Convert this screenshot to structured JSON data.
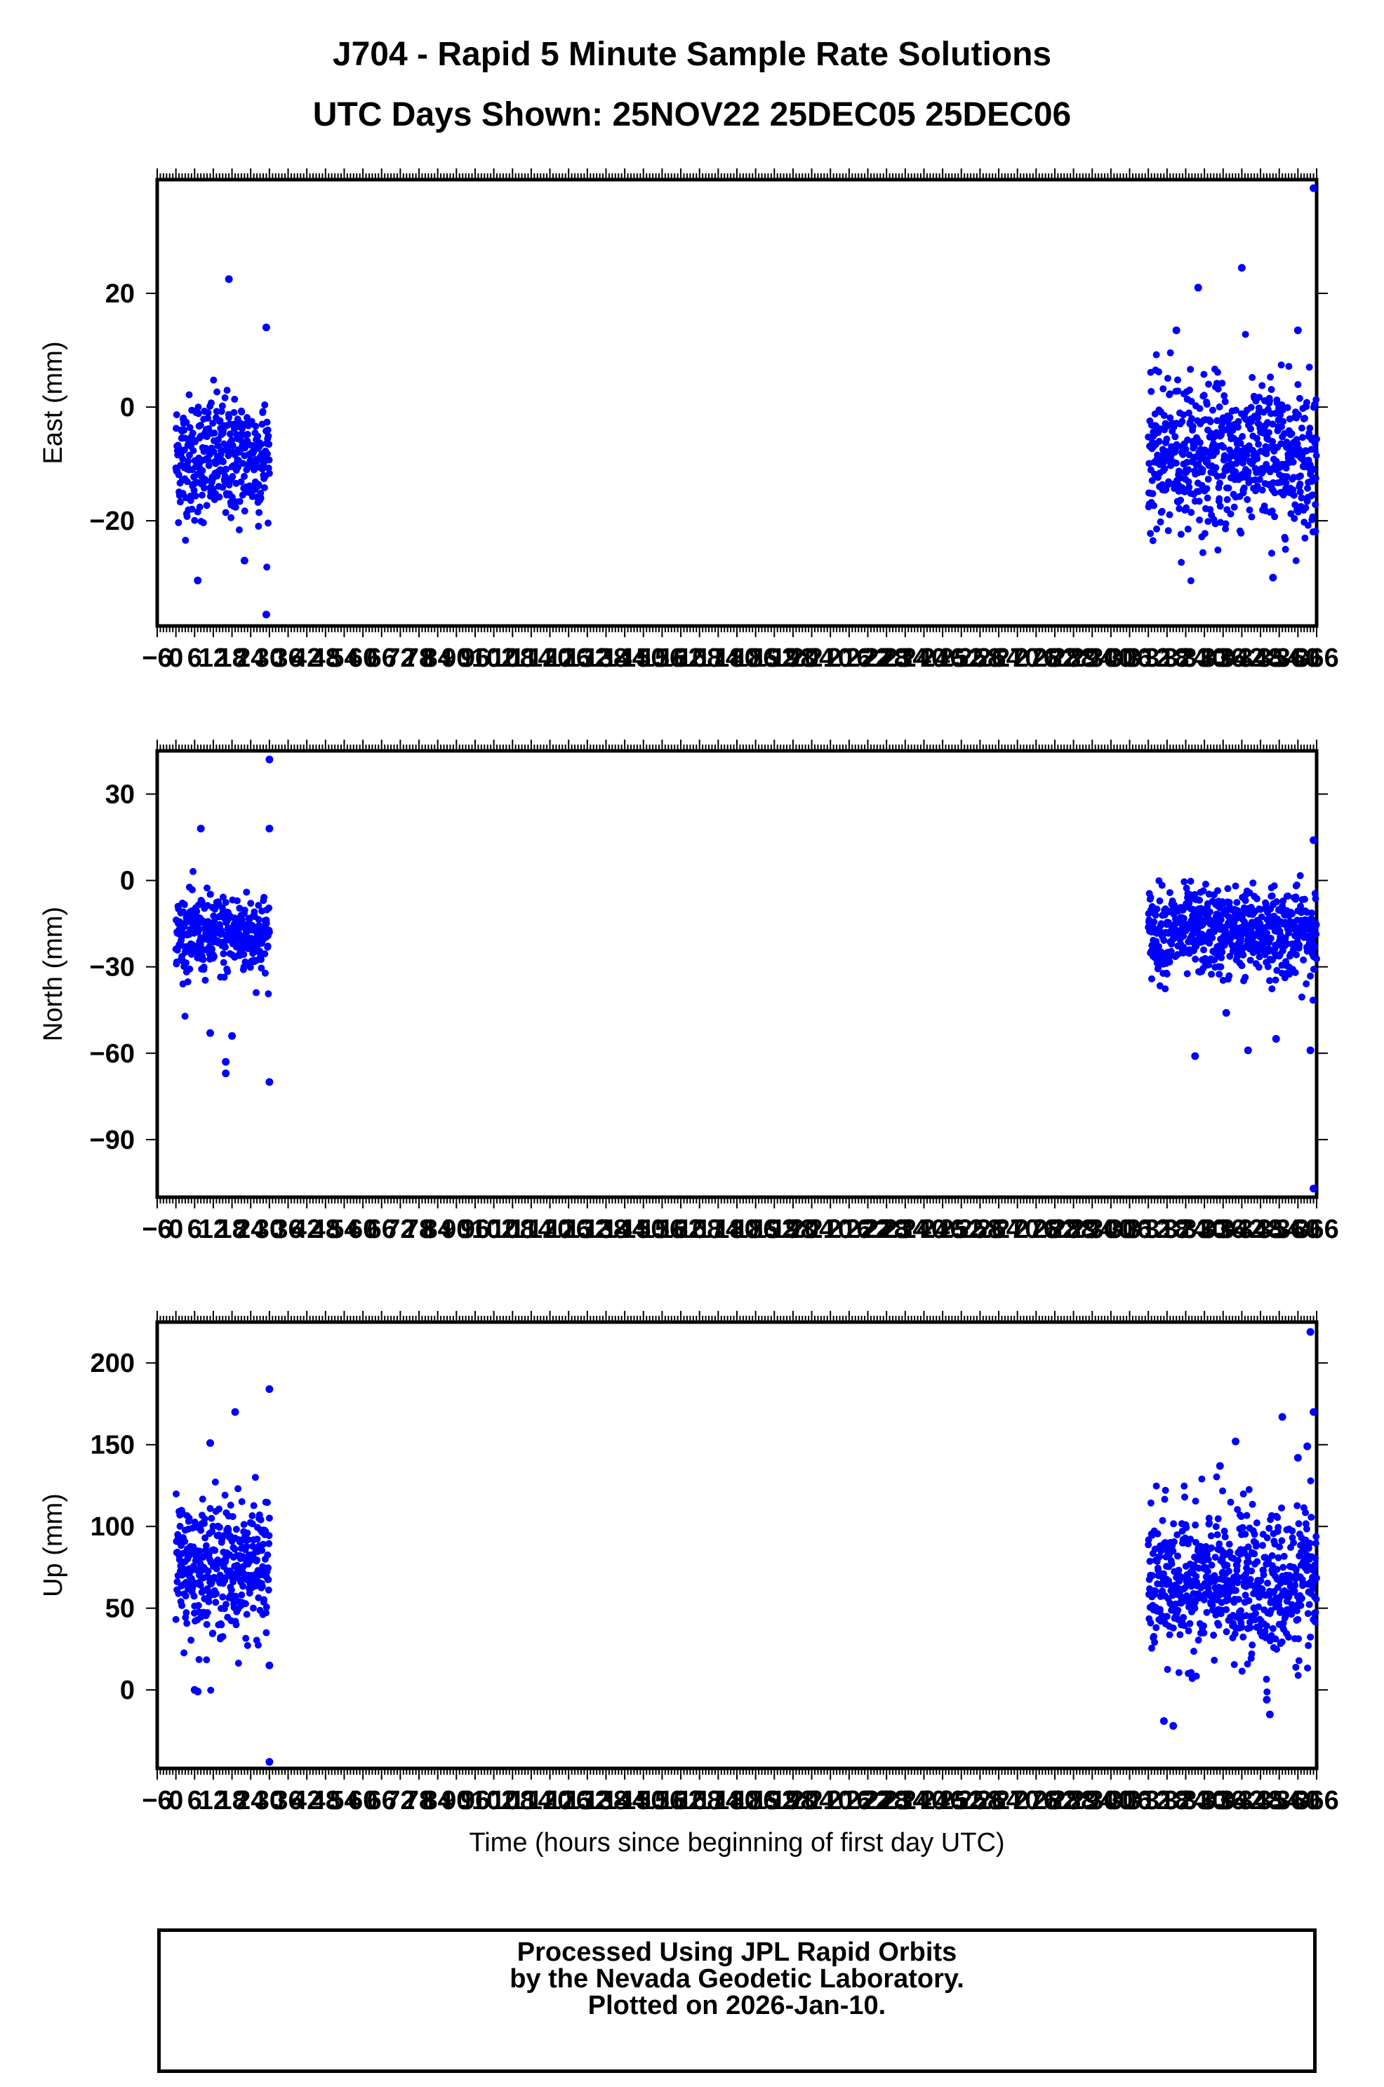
{
  "header": {
    "title": "J704 - Rapid 5 Minute Sample Rate Solutions",
    "subtitle": "UTC Days Shown:  25NOV22 25DEC05 25DEC06"
  },
  "footer": {
    "line1": "Processed Using JPL Rapid Orbits",
    "line2": "by the Nevada Geodetic Laboratory.",
    "line3": "Plotted on 2026-Jan-10."
  },
  "colors": {
    "points": "#0000ff",
    "frame": "#000000"
  },
  "chart_data": [
    {
      "type": "scatter",
      "ylabel": "East (mm)",
      "xlabel": "",
      "xlim": [
        -6,
        366
      ],
      "ylim": [
        -38.5,
        40
      ],
      "yticks": [
        20,
        0,
        -20
      ],
      "ytick_labels": [
        "20",
        "0",
        "−20"
      ],
      "xticks": [
        -6,
        0,
        6,
        12,
        18,
        24,
        30,
        36,
        42,
        48,
        54,
        60,
        66,
        72,
        78,
        84,
        90,
        96,
        102,
        108,
        114,
        120,
        126,
        132,
        138,
        144,
        150,
        156,
        162,
        168,
        174,
        180,
        186,
        192,
        198,
        204,
        210,
        216,
        222,
        228,
        234,
        240,
        246,
        252,
        258,
        264,
        270,
        276,
        282,
        288,
        294,
        300,
        306,
        312,
        318,
        324,
        330,
        336,
        342,
        348,
        354,
        360,
        366
      ],
      "xtick_labels": [
        "−6",
        "0",
        "6",
        "12",
        "18",
        "24",
        "30",
        "36",
        "42",
        "48",
        "54",
        "60",
        "66",
        "72",
        "78",
        "84",
        "90",
        "96",
        "102",
        "108",
        "114",
        "120",
        "126",
        "132",
        "138",
        "144",
        "150",
        "156",
        "162",
        "168",
        "174",
        "180",
        "186",
        "192",
        "198",
        "204",
        "210",
        "216",
        "222",
        "228",
        "234",
        "240",
        "246",
        "252",
        "258",
        "264",
        "270",
        "276",
        "282",
        "288",
        "294",
        "300",
        "306",
        "312",
        "318",
        "324",
        "330",
        "336",
        "342",
        "348",
        "354",
        "360",
        "366"
      ],
      "clusters": [
        {
          "x_range": [
            0,
            30
          ],
          "center": -9,
          "spread": 5.5
        },
        {
          "x_range": [
            312,
            366
          ],
          "center": -8.5,
          "spread": 6.5
        }
      ],
      "outliers": [
        [
          7,
          -30.5
        ],
        [
          17,
          22.5
        ],
        [
          22,
          -27
        ],
        [
          29,
          14
        ],
        [
          29,
          -36.5
        ],
        [
          321,
          13.5
        ],
        [
          328,
          21
        ],
        [
          342,
          24.5
        ],
        [
          352,
          -30
        ],
        [
          365,
          38.5
        ],
        [
          360,
          13.5
        ]
      ]
    },
    {
      "type": "scatter",
      "ylabel": "North (mm)",
      "xlabel": "",
      "xlim": [
        -6,
        366
      ],
      "ylim": [
        -110,
        45
      ],
      "yticks": [
        30,
        0,
        -30,
        -60,
        -90
      ],
      "ytick_labels": [
        "30",
        "0",
        "−30",
        "−60",
        "−90"
      ],
      "xticks": [
        -6,
        0,
        6,
        12,
        18,
        24,
        30,
        36,
        42,
        48,
        54,
        60,
        66,
        72,
        78,
        84,
        90,
        96,
        102,
        108,
        114,
        120,
        126,
        132,
        138,
        144,
        150,
        156,
        162,
        168,
        174,
        180,
        186,
        192,
        198,
        204,
        210,
        216,
        222,
        228,
        234,
        240,
        246,
        252,
        258,
        264,
        270,
        276,
        282,
        288,
        294,
        300,
        306,
        312,
        318,
        324,
        330,
        336,
        342,
        348,
        354,
        360,
        366
      ],
      "xtick_labels": [
        "−6",
        "0",
        "6",
        "12",
        "18",
        "24",
        "30",
        "36",
        "42",
        "48",
        "54",
        "60",
        "66",
        "72",
        "78",
        "84",
        "90",
        "96",
        "102",
        "108",
        "114",
        "120",
        "126",
        "132",
        "138",
        "144",
        "150",
        "156",
        "162",
        "168",
        "174",
        "180",
        "186",
        "192",
        "198",
        "204",
        "210",
        "216",
        "222",
        "228",
        "234",
        "240",
        "246",
        "252",
        "258",
        "264",
        "270",
        "276",
        "282",
        "288",
        "294",
        "300",
        "306",
        "312",
        "318",
        "324",
        "330",
        "336",
        "342",
        "348",
        "354",
        "360",
        "366"
      ],
      "clusters": [
        {
          "x_range": [
            0,
            30
          ],
          "center": -19,
          "spread": 7
        },
        {
          "x_range": [
            312,
            366
          ],
          "center": -18,
          "spread": 7.5
        }
      ],
      "outliers": [
        [
          8,
          18
        ],
        [
          11,
          -53
        ],
        [
          16,
          -67
        ],
        [
          16,
          -63
        ],
        [
          18,
          -54
        ],
        [
          30,
          42
        ],
        [
          30,
          18
        ],
        [
          30,
          -70
        ],
        [
          327,
          -61
        ],
        [
          337,
          -46
        ],
        [
          344,
          -59
        ],
        [
          353,
          -55
        ],
        [
          364,
          -59
        ],
        [
          365,
          -107
        ],
        [
          365,
          14
        ]
      ]
    },
    {
      "type": "scatter",
      "ylabel": "Up (mm)",
      "xlabel": "Time (hours since beginning of first day UTC)",
      "xlim": [
        -6,
        366
      ],
      "ylim": [
        -48,
        225
      ],
      "yticks": [
        200,
        150,
        100,
        50,
        0
      ],
      "ytick_labels": [
        "200",
        "150",
        "100",
        "50",
        "0"
      ],
      "xticks": [
        -6,
        0,
        6,
        12,
        18,
        24,
        30,
        36,
        42,
        48,
        54,
        60,
        66,
        72,
        78,
        84,
        90,
        96,
        102,
        108,
        114,
        120,
        126,
        132,
        138,
        144,
        150,
        156,
        162,
        168,
        174,
        180,
        186,
        192,
        198,
        204,
        210,
        216,
        222,
        228,
        234,
        240,
        246,
        252,
        258,
        264,
        270,
        276,
        282,
        288,
        294,
        300,
        306,
        312,
        318,
        324,
        330,
        336,
        342,
        348,
        354,
        360,
        366
      ],
      "xtick_labels": [
        "−6",
        "0",
        "6",
        "12",
        "18",
        "24",
        "30",
        "36",
        "42",
        "48",
        "54",
        "60",
        "66",
        "72",
        "78",
        "84",
        "90",
        "96",
        "102",
        "108",
        "114",
        "120",
        "126",
        "132",
        "138",
        "144",
        "150",
        "156",
        "162",
        "168",
        "174",
        "180",
        "186",
        "192",
        "198",
        "204",
        "210",
        "216",
        "222",
        "228",
        "234",
        "240",
        "246",
        "252",
        "258",
        "264",
        "270",
        "276",
        "282",
        "288",
        "294",
        "300",
        "306",
        "312",
        "318",
        "324",
        "330",
        "336",
        "342",
        "348",
        "354",
        "360",
        "366"
      ],
      "clusters": [
        {
          "x_range": [
            0,
            30
          ],
          "center": 75,
          "spread": 20
        },
        {
          "x_range": [
            312,
            366
          ],
          "center": 65,
          "spread": 22
        }
      ],
      "outliers": [
        [
          6,
          0
        ],
        [
          7,
          -1
        ],
        [
          11,
          151
        ],
        [
          19,
          170
        ],
        [
          30,
          184
        ],
        [
          30,
          -44
        ],
        [
          30,
          15
        ],
        [
          317,
          -19
        ],
        [
          320,
          -22
        ],
        [
          335,
          137
        ],
        [
          340,
          152
        ],
        [
          350,
          -6
        ],
        [
          351,
          -15
        ],
        [
          355,
          167
        ],
        [
          360,
          142
        ],
        [
          364,
          219
        ],
        [
          365,
          170
        ],
        [
          363,
          149
        ]
      ]
    }
  ]
}
